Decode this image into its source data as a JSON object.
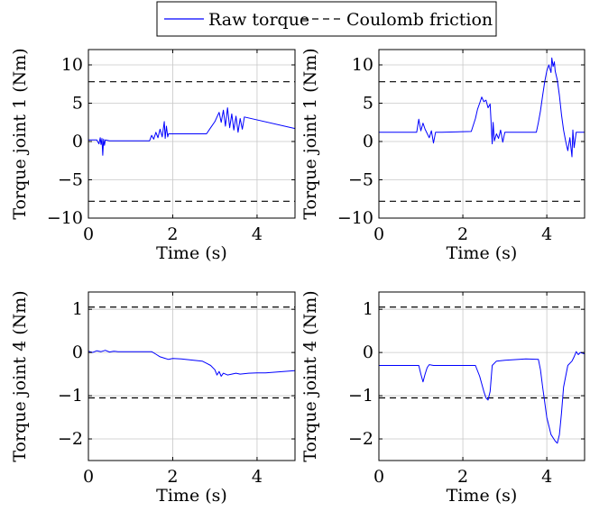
{
  "legend": {
    "placement": "top-center",
    "entries": [
      {
        "label": "Raw torque",
        "style": "solid",
        "color": "#0000ff"
      },
      {
        "label": "Coulomb friction",
        "style": "dashed",
        "color": "#000000"
      }
    ]
  },
  "chart_data": [
    {
      "type": "line",
      "xlabel": "Time (s)",
      "ylabel": "Torque joint 1 (Nm)",
      "xlim": [
        0,
        4.9
      ],
      "ylim": [
        -10,
        12
      ],
      "xticks": [
        0,
        2,
        4
      ],
      "yticks": [
        -10,
        -5,
        0,
        5,
        10
      ],
      "grid": true,
      "friction": [
        7.8,
        -7.8
      ],
      "series": [
        {
          "name": "Raw torque",
          "color": "#0000ff",
          "x": [
            0,
            0.1,
            0.2,
            0.25,
            0.28,
            0.3,
            0.32,
            0.34,
            0.36,
            0.38,
            0.4,
            0.5,
            1.0,
            1.45,
            1.5,
            1.55,
            1.6,
            1.65,
            1.7,
            1.75,
            1.8,
            1.82,
            1.85,
            1.88,
            1.9,
            1.95,
            2.0,
            2.5,
            2.8,
            2.9,
            3.0,
            3.05,
            3.1,
            3.15,
            3.2,
            3.25,
            3.3,
            3.35,
            3.4,
            3.45,
            3.5,
            3.55,
            3.6,
            3.65,
            3.7,
            4.9
          ],
          "y": [
            0.2,
            0.2,
            0.2,
            -0.3,
            0.5,
            -0.4,
            0.4,
            -1.8,
            0.3,
            -0.5,
            0.2,
            0.1,
            0.1,
            0.1,
            0.8,
            0.3,
            1.2,
            0.5,
            1.6,
            0.6,
            2.6,
            0.4,
            2.0,
            0.6,
            1.0,
            1.0,
            1.0,
            1.0,
            1.0,
            1.8,
            2.6,
            3.2,
            3.8,
            2.5,
            4.1,
            2.0,
            4.4,
            1.8,
            3.6,
            1.5,
            3.3,
            1.2,
            3.0,
            1.6,
            3.2,
            1.7
          ]
        }
      ]
    },
    {
      "type": "line",
      "xlabel": "Time (s)",
      "ylabel": "Torque joint 1 (Nm)",
      "xlim": [
        0,
        4.9
      ],
      "ylim": [
        -10,
        12
      ],
      "xticks": [
        0,
        2,
        4
      ],
      "yticks": [
        -10,
        -5,
        0,
        5,
        10
      ],
      "grid": true,
      "friction": [
        7.8,
        -7.8
      ],
      "series": [
        {
          "name": "Raw torque",
          "color": "#0000ff",
          "x": [
            0,
            0.9,
            0.95,
            1.0,
            1.05,
            1.1,
            1.2,
            1.25,
            1.3,
            1.35,
            1.4,
            1.5,
            2.2,
            2.3,
            2.35,
            2.4,
            2.45,
            2.5,
            2.55,
            2.6,
            2.65,
            2.7,
            2.72,
            2.75,
            2.8,
            2.85,
            2.9,
            2.95,
            3.0,
            3.5,
            3.75,
            3.8,
            3.85,
            3.9,
            3.95,
            4.0,
            4.05,
            4.1,
            4.12,
            4.15,
            4.18,
            4.2,
            4.25,
            4.3,
            4.35,
            4.4,
            4.45,
            4.5,
            4.55,
            4.6,
            4.62,
            4.65,
            4.7,
            4.9
          ],
          "y": [
            1.2,
            1.2,
            2.9,
            1.4,
            2.4,
            1.6,
            0.5,
            1.4,
            -0.2,
            1.2,
            1.2,
            1.2,
            1.3,
            3.0,
            4.2,
            5.0,
            5.8,
            5.2,
            5.4,
            4.4,
            4.9,
            -0.3,
            2.5,
            0.1,
            1.0,
            0.4,
            1.5,
            -0.1,
            1.2,
            1.2,
            1.2,
            2.5,
            4.0,
            6.0,
            7.8,
            9.2,
            10.0,
            9.0,
            10.9,
            9.8,
            10.4,
            9.2,
            8.0,
            6.0,
            3.5,
            1.5,
            0.0,
            -1.2,
            0.5,
            -2.0,
            1.5,
            -0.8,
            1.2,
            1.2
          ]
        }
      ]
    },
    {
      "type": "line",
      "xlabel": "Time (s)",
      "ylabel": "Torque joint 4 (Nm)",
      "xlim": [
        0,
        4.9
      ],
      "ylim": [
        -2.5,
        1.4
      ],
      "xticks": [
        0,
        2,
        4
      ],
      "yticks": [
        -2,
        -1,
        0,
        1
      ],
      "grid": true,
      "friction": [
        1.05,
        -1.05
      ],
      "series": [
        {
          "name": "Raw torque",
          "color": "#0000ff",
          "x": [
            0,
            0.1,
            0.2,
            0.3,
            0.4,
            0.5,
            0.6,
            0.7,
            1.0,
            1.5,
            1.6,
            1.7,
            1.8,
            1.9,
            2.0,
            2.2,
            2.5,
            2.7,
            2.8,
            2.9,
            3.0,
            3.05,
            3.1,
            3.15,
            3.2,
            3.3,
            3.4,
            3.5,
            3.6,
            3.8,
            4.0,
            4.2,
            4.9
          ],
          "y": [
            0.03,
            0.0,
            0.04,
            0.02,
            0.05,
            0.01,
            0.03,
            0.02,
            0.02,
            0.02,
            -0.04,
            -0.1,
            -0.13,
            -0.16,
            -0.14,
            -0.15,
            -0.18,
            -0.2,
            -0.25,
            -0.3,
            -0.4,
            -0.52,
            -0.44,
            -0.55,
            -0.48,
            -0.52,
            -0.5,
            -0.48,
            -0.5,
            -0.48,
            -0.47,
            -0.47,
            -0.42
          ]
        }
      ]
    },
    {
      "type": "line",
      "xlabel": "Time (s)",
      "ylabel": "Torque joint 4 (Nm)",
      "xlim": [
        0,
        4.9
      ],
      "ylim": [
        -2.5,
        1.4
      ],
      "xticks": [
        0,
        2,
        4
      ],
      "yticks": [
        -2,
        -1,
        0,
        1
      ],
      "grid": true,
      "friction": [
        1.05,
        -1.05
      ],
      "series": [
        {
          "name": "Raw torque",
          "color": "#0000ff",
          "x": [
            0,
            0.95,
            1.0,
            1.05,
            1.1,
            1.15,
            1.2,
            1.3,
            2.3,
            2.4,
            2.5,
            2.55,
            2.6,
            2.65,
            2.7,
            2.8,
            3.0,
            3.5,
            3.8,
            3.85,
            3.9,
            4.0,
            4.1,
            4.2,
            4.25,
            4.3,
            4.35,
            4.4,
            4.5,
            4.6,
            4.65,
            4.7,
            4.75,
            4.8,
            4.9
          ],
          "y": [
            -0.3,
            -0.3,
            -0.5,
            -0.68,
            -0.5,
            -0.35,
            -0.28,
            -0.3,
            -0.3,
            -0.55,
            -0.9,
            -1.05,
            -1.1,
            -0.9,
            -0.3,
            -0.2,
            -0.18,
            -0.15,
            -0.16,
            -0.4,
            -0.8,
            -1.5,
            -1.9,
            -2.05,
            -2.1,
            -1.9,
            -1.4,
            -0.8,
            -0.3,
            -0.2,
            -0.1,
            0.02,
            -0.05,
            0.0,
            -0.03
          ]
        }
      ]
    }
  ]
}
